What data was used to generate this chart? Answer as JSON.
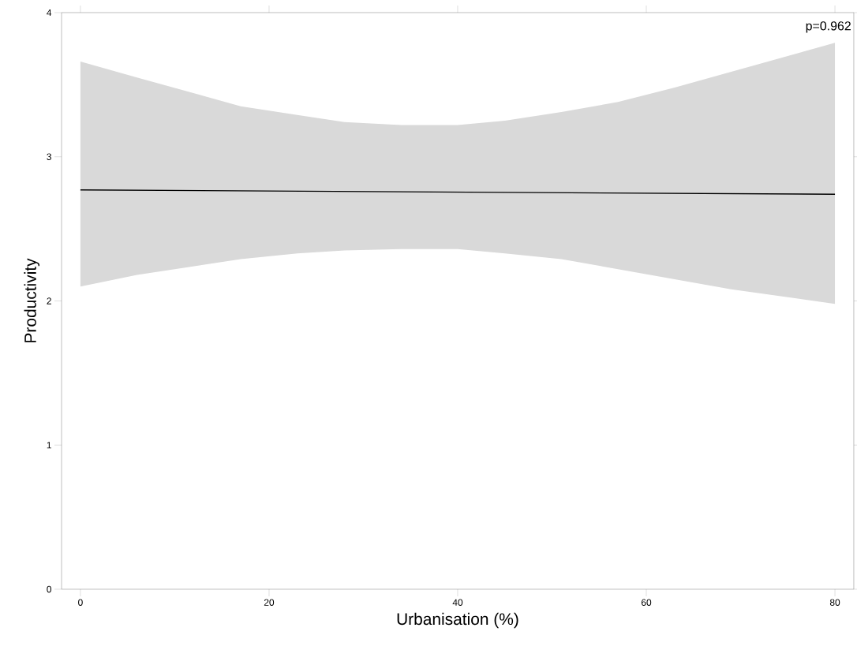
{
  "chart_data": {
    "type": "line",
    "xlabel": "Urbanisation (%)",
    "ylabel": "Productivity",
    "annotations": [
      "p=0.962"
    ],
    "series": [
      {
        "color": "#000000",
        "x": [
          0,
          6,
          17,
          23,
          28,
          34,
          40,
          45,
          51,
          57,
          63,
          69,
          80
        ],
        "values": [
          2.77,
          null,
          null,
          null,
          null,
          null,
          null,
          null,
          null,
          null,
          null,
          null,
          2.74
        ],
        "lower": [
          2.1,
          2.18,
          2.29,
          2.33,
          2.35,
          2.36,
          2.36,
          2.33,
          2.29,
          2.22,
          2.15,
          2.08,
          1.98
        ],
        "upper": [
          3.66,
          3.55,
          3.35,
          3.29,
          3.24,
          3.22,
          3.22,
          3.25,
          3.31,
          3.38,
          3.48,
          3.59,
          3.79
        ]
      }
    ],
    "xlim": [
      -2,
      82
    ],
    "ylim": [
      0,
      4
    ],
    "xticks": [
      0,
      20,
      40,
      60,
      80
    ],
    "yticks": [
      0,
      1,
      2,
      3,
      4
    ],
    "grid": false,
    "marker": "none",
    "line_style": "solid"
  }
}
